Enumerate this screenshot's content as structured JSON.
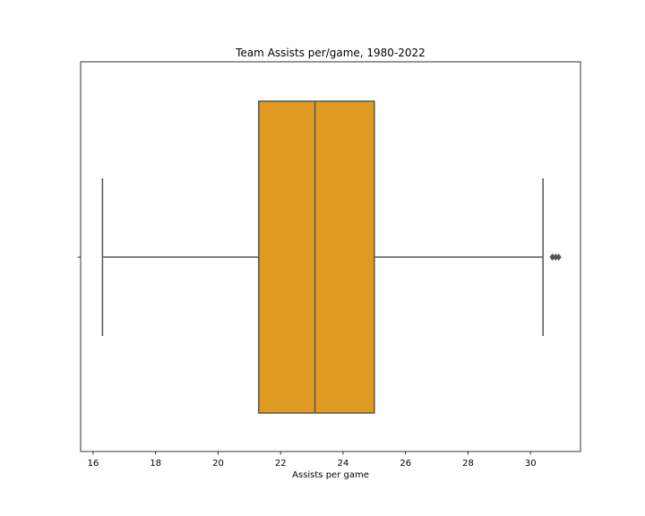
{
  "chart_data": {
    "type": "box",
    "title": "Team Assists per/game, 1980-2022",
    "xlabel": "Assists per game",
    "ylabel": "",
    "xlim": [
      15.6,
      31.6
    ],
    "xticks": [
      16,
      18,
      20,
      22,
      24,
      26,
      28,
      30
    ],
    "orientation": "horizontal",
    "grid": false,
    "box": {
      "whisker_low": 16.3,
      "q1": 21.3,
      "median": 23.1,
      "q3": 25.0,
      "whisker_high": 30.4
    },
    "outliers": [
      30.7,
      30.8,
      30.9
    ],
    "colors": {
      "box_fill": "#e09c22",
      "lines": "#555555",
      "frame": "#000000"
    }
  }
}
